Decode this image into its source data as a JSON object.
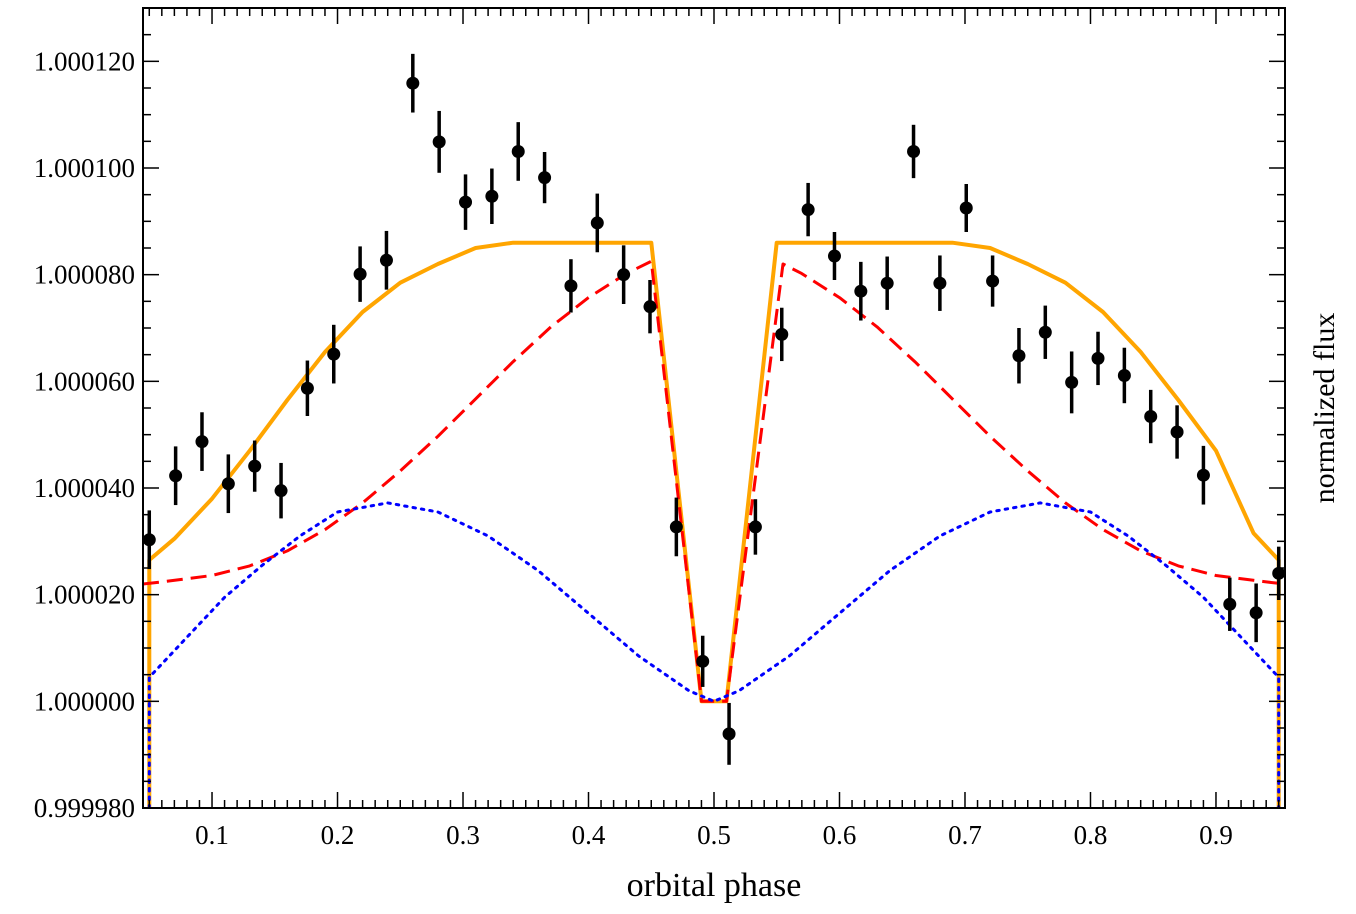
{
  "chart_data": {
    "type": "line",
    "xlabel": "orbital phase",
    "ylabel": "normalized flux",
    "xlim": [
      0.045,
      0.955
    ],
    "ylim": [
      0.99998,
      1.00013
    ],
    "x_ticks": [
      0.1,
      0.2,
      0.3,
      0.4,
      0.5,
      0.6,
      0.7,
      0.8,
      0.9
    ],
    "x_tick_labels": [
      "0.1",
      "0.2",
      "0.3",
      "0.4",
      "0.5",
      "0.6",
      "0.7",
      "0.8",
      "0.9"
    ],
    "y_ticks": [
      0.99998,
      1.0,
      1.00002,
      1.00004,
      1.00006,
      1.00008,
      1.0001,
      1.00012
    ],
    "y_tick_labels": [
      "0.999980",
      "1.000000",
      "1.000020",
      "1.000040",
      "1.000060",
      "1.000080",
      "1.000100",
      "1.000120"
    ],
    "grid": false,
    "data_points": {
      "x": [
        0.05,
        0.071,
        0.092,
        0.113,
        0.134,
        0.155,
        0.176,
        0.197,
        0.218,
        0.239,
        0.26,
        0.281,
        0.302,
        0.323,
        0.344,
        0.365,
        0.386,
        0.407,
        0.428,
        0.449,
        0.47,
        0.491,
        0.512,
        0.533,
        0.554,
        0.575,
        0.596,
        0.617,
        0.638,
        0.659,
        0.68,
        0.701,
        0.722,
        0.743,
        0.764,
        0.785,
        0.806,
        0.827,
        0.848,
        0.869,
        0.89,
        0.911,
        0.932,
        0.95
      ],
      "y": [
        1.0000303,
        1.0000423,
        1.0000487,
        1.0000408,
        1.0000441,
        1.0000395,
        1.0000587,
        1.0000651,
        1.0000801,
        1.0000827,
        1.0001159,
        1.0001049,
        1.0000936,
        1.0000947,
        1.0001031,
        1.0000982,
        1.0000779,
        1.0000897,
        1.00008,
        1.000074,
        1.0000327,
        1.0000075,
        0.9999939,
        1.0000327,
        1.0000688,
        1.0000922,
        1.0000835,
        1.0000769,
        1.0000784,
        1.0001031,
        1.0000784,
        1.0000925,
        1.0000788,
        1.0000648,
        1.0000692,
        1.0000598,
        1.0000643,
        1.0000611,
        1.0000534,
        1.0000505,
        1.0000424,
        1.0000182,
        1.0000166,
        1.000024
      ],
      "err": [
        5.5e-06,
        5.5e-06,
        5.5e-06,
        5.5e-06,
        4.8e-06,
        5.2e-06,
        5.2e-06,
        5.5e-06,
        5.2e-06,
        5.5e-06,
        5.5e-06,
        5.8e-06,
        5.2e-06,
        5.2e-06,
        5.5e-06,
        4.8e-06,
        5e-06,
        5.5e-06,
        5.5e-06,
        5e-06,
        5.5e-06,
        4.8e-06,
        5.8e-06,
        5.2e-06,
        5e-06,
        5e-06,
        4.5e-06,
        5.5e-06,
        5e-06,
        5e-06,
        5.2e-06,
        4.5e-06,
        4.8e-06,
        5.2e-06,
        5e-06,
        5.8e-06,
        5e-06,
        5.2e-06,
        5e-06,
        5e-06,
        5.5e-06,
        5e-06,
        5.5e-06,
        5e-06
      ]
    },
    "series": [
      {
        "style": "solid",
        "color": "#ffa500",
        "x": [
          0.05,
          0.05,
          0.07,
          0.1,
          0.13,
          0.16,
          0.19,
          0.22,
          0.25,
          0.28,
          0.31,
          0.34,
          0.37,
          0.4,
          0.43,
          0.45,
          0.49,
          0.51,
          0.55,
          0.57,
          0.6,
          0.63,
          0.66,
          0.69,
          0.72,
          0.75,
          0.78,
          0.81,
          0.84,
          0.87,
          0.9,
          0.93,
          0.95,
          0.95
        ],
        "y": [
          0.99998,
          1.0000265,
          1.0000305,
          1.000038,
          1.000047,
          1.0000565,
          1.0000655,
          1.000073,
          1.0000785,
          1.000082,
          1.000085,
          1.000086,
          1.000086,
          1.000086,
          1.000086,
          1.000086,
          1.0,
          1.0,
          1.000086,
          1.000086,
          1.000086,
          1.000086,
          1.000086,
          1.000086,
          1.000085,
          1.000082,
          1.0000785,
          1.000073,
          1.0000655,
          1.0000565,
          1.000047,
          1.0000315,
          1.0000265,
          0.99998
        ]
      },
      {
        "style": "dashed",
        "color": "#ff0000",
        "x": [
          0.045,
          0.06,
          0.1,
          0.13,
          0.16,
          0.19,
          0.22,
          0.25,
          0.28,
          0.31,
          0.34,
          0.37,
          0.4,
          0.43,
          0.45,
          0.49,
          0.51,
          0.555,
          0.57,
          0.6,
          0.63,
          0.66,
          0.69,
          0.72,
          0.75,
          0.78,
          0.81,
          0.84,
          0.87,
          0.9,
          0.94,
          0.955
        ],
        "y": [
          1.000022,
          1.0000224,
          1.0000236,
          1.0000254,
          1.0000282,
          1.0000322,
          1.0000372,
          1.0000432,
          1.0000497,
          1.0000567,
          1.0000637,
          1.0000702,
          1.0000757,
          1.0000802,
          1.0000825,
          1.0,
          1.0,
          1.000082,
          1.0000802,
          1.0000757,
          1.0000702,
          1.0000637,
          1.0000567,
          1.0000497,
          1.0000432,
          1.0000372,
          1.0000322,
          1.0000282,
          1.0000254,
          1.0000236,
          1.0000224,
          1.000022
        ]
      },
      {
        "style": "dotted",
        "color": "#0000ff",
        "x": [
          0.05,
          0.05,
          0.08,
          0.11,
          0.14,
          0.17,
          0.2,
          0.24,
          0.28,
          0.32,
          0.36,
          0.4,
          0.44,
          0.48,
          0.5,
          0.52,
          0.56,
          0.6,
          0.64,
          0.68,
          0.72,
          0.76,
          0.8,
          0.83,
          0.86,
          0.89,
          0.92,
          0.95,
          0.95
        ],
        "y": [
          0.99998,
          1.0000045,
          1.000012,
          1.0000195,
          1.0000255,
          1.000031,
          1.0000355,
          1.0000372,
          1.0000355,
          1.000031,
          1.0000245,
          1.0000165,
          1.0000085,
          1.000002,
          1.0,
          1.000002,
          1.0000085,
          1.0000165,
          1.0000245,
          1.000031,
          1.0000355,
          1.0000372,
          1.0000355,
          1.000031,
          1.0000255,
          1.0000195,
          1.000012,
          1.0000045,
          0.99998
        ]
      }
    ]
  }
}
